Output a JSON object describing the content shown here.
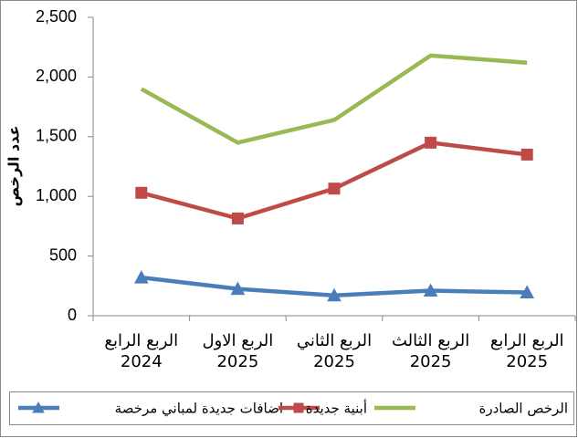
{
  "chart_data": {
    "type": "line",
    "y_label": "عدد الرخص",
    "categories": [
      "الربع الرابع\n2024",
      "الربع الاول\n2025",
      "الربع الثاني\n2025",
      "الربع الثالث\n2025",
      "الربع الرابع\n2025"
    ],
    "series": [
      {
        "name": "اضافات جديدة لمباني مرخصة",
        "color": "#4a7ebb",
        "marker": "triangle",
        "values": [
          320,
          225,
          170,
          210,
          195
        ]
      },
      {
        "name": "أبنية جديدة",
        "color": "#be4b48",
        "marker": "square",
        "values": [
          1030,
          815,
          1065,
          1450,
          1350
        ]
      },
      {
        "name": "الرخص الصادرة",
        "color": "#98b954",
        "marker": "none",
        "values": [
          1900,
          1450,
          1640,
          2180,
          2120
        ]
      }
    ],
    "ylim": [
      0,
      2500
    ],
    "yticks": [
      0,
      500,
      {
        "value": 1000,
        "label": "1,000"
      },
      {
        "value": 1500,
        "label": "1,500"
      },
      {
        "value": 2000,
        "label": "2,000"
      },
      {
        "value": 2500,
        "label": "2,500"
      }
    ],
    "grid": false,
    "legend": "bottom"
  }
}
